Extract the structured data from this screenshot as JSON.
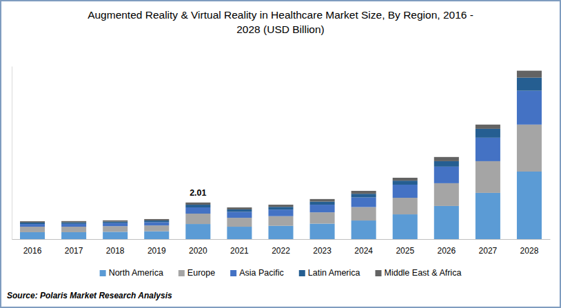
{
  "chart_data": {
    "type": "bar",
    "stacked": true,
    "title": "Augmented Reality & Virtual Reality in Healthcare Market Size, By Region, 2016 -\n2028 (USD Billion)",
    "caption": "Source: Polaris Market Research Analysis",
    "categories": [
      "2016",
      "2017",
      "2018",
      "2019",
      "2020",
      "2021",
      "2022",
      "2023",
      "2024",
      "2025",
      "2026",
      "2027",
      "2028"
    ],
    "series": [
      {
        "name": "North America",
        "color": "#5b9bd5",
        "values": [
          0.38,
          0.38,
          0.4,
          0.43,
          0.83,
          0.68,
          0.73,
          0.85,
          1.02,
          1.36,
          1.82,
          2.54,
          3.71
        ]
      },
      {
        "name": "Europe",
        "color": "#a5a5a5",
        "values": [
          0.3,
          0.3,
          0.31,
          0.32,
          0.57,
          0.49,
          0.53,
          0.62,
          0.74,
          0.91,
          1.25,
          1.74,
          2.58
        ]
      },
      {
        "name": "Asia Pacific",
        "color": "#4472c4",
        "values": [
          0.15,
          0.16,
          0.17,
          0.18,
          0.34,
          0.33,
          0.36,
          0.42,
          0.53,
          0.72,
          0.91,
          1.29,
          1.86
        ]
      },
      {
        "name": "Latin America",
        "color": "#255e91",
        "values": [
          0.08,
          0.08,
          0.08,
          0.09,
          0.15,
          0.13,
          0.15,
          0.17,
          0.2,
          0.22,
          0.3,
          0.49,
          0.72
        ]
      },
      {
        "name": "Middle East & Africa",
        "color": "#636363",
        "values": [
          0.07,
          0.07,
          0.07,
          0.08,
          0.12,
          0.11,
          0.12,
          0.14,
          0.16,
          0.16,
          0.23,
          0.23,
          0.38
        ]
      }
    ],
    "annotations": [
      {
        "text": "2.01",
        "x": "2020",
        "y": 2.01
      }
    ],
    "ylim": [
      0,
      9.5
    ],
    "tick_labels": "x",
    "legend": "bottom",
    "grid": false
  }
}
